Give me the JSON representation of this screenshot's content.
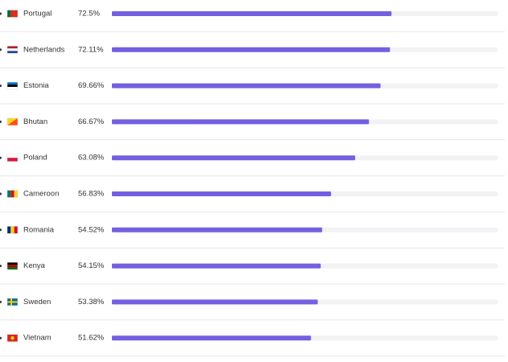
{
  "chart_data": {
    "type": "bar",
    "orientation": "horizontal",
    "categories": [
      "Portugal",
      "Netherlands",
      "Estonia",
      "Bhutan",
      "Poland",
      "Cameroon",
      "Romania",
      "Kenya",
      "Sweden",
      "Vietnam"
    ],
    "values": [
      72.5,
      72.11,
      69.66,
      66.67,
      63.08,
      56.83,
      54.52,
      54.15,
      53.38,
      51.62
    ],
    "value_labels": [
      "72.5%",
      "72.11%",
      "69.66%",
      "66.67%",
      "63.08%",
      "56.83%",
      "54.52%",
      "54.15%",
      "53.38%",
      "51.62%"
    ],
    "color": "#7360e0",
    "xlim": [
      0,
      100
    ]
  }
}
